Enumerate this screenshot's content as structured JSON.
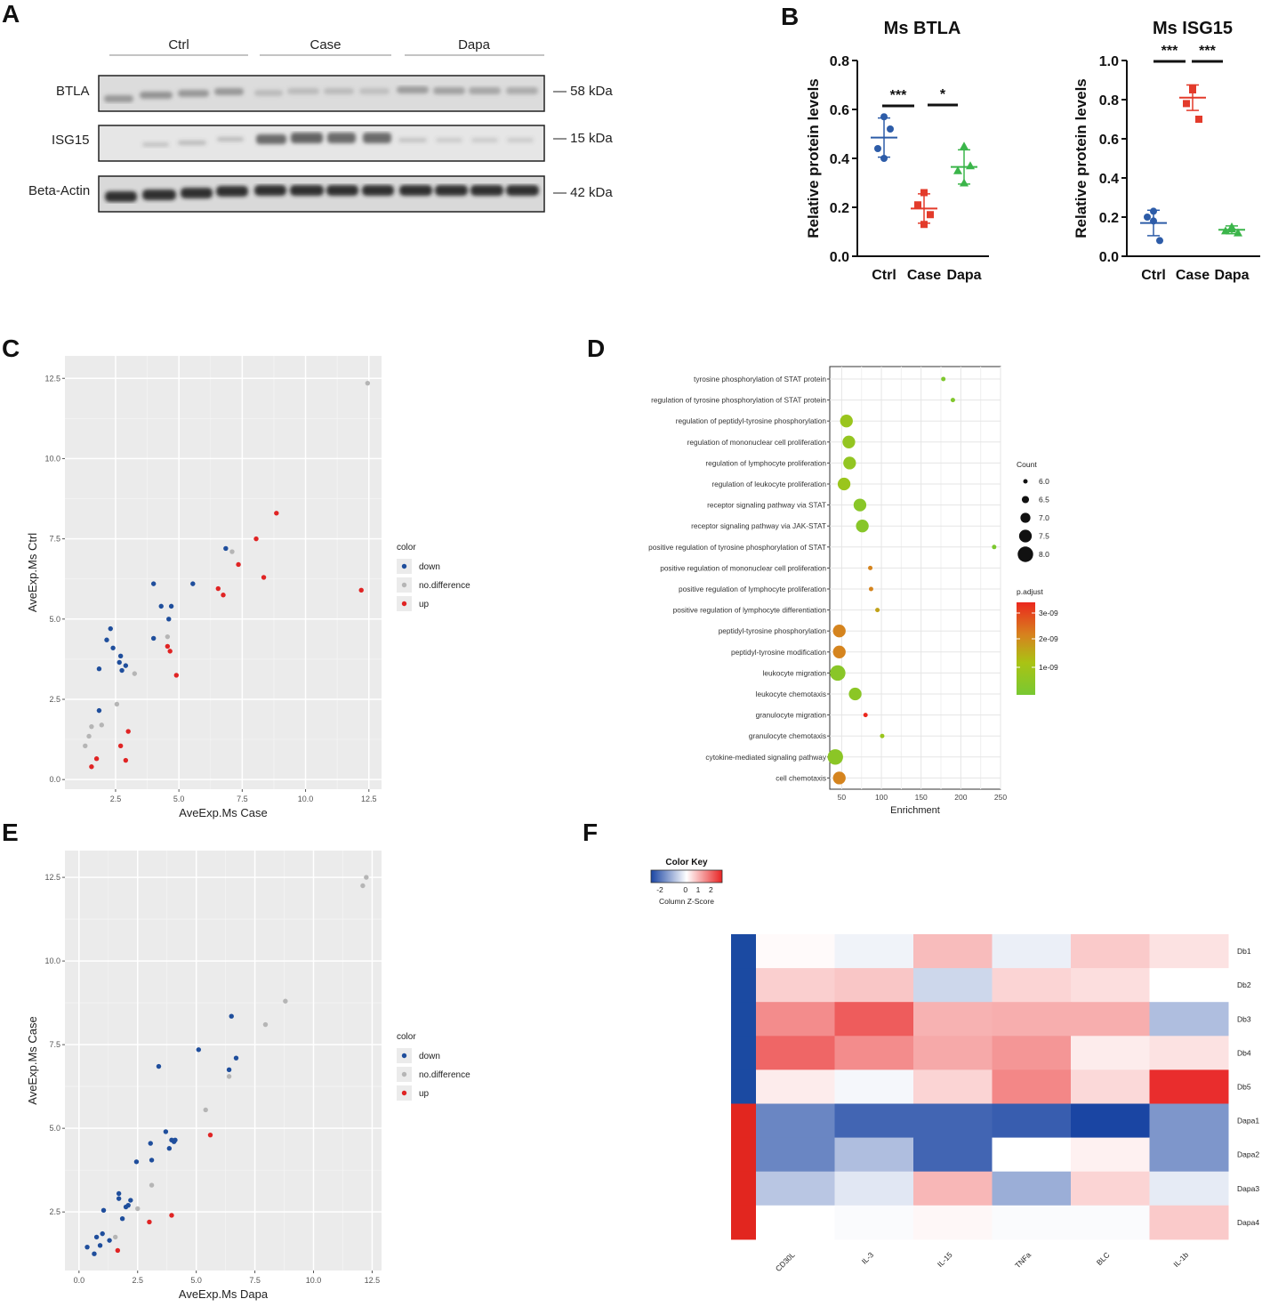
{
  "colors": {
    "down": "#1f4e9c",
    "nodiff": "#b5b5b5",
    "up": "#e02424",
    "ctrl": "#2d5ca8",
    "case": "#e33b2b",
    "dapa": "#3bb54a",
    "panel_bg": "#ebebeb"
  },
  "panel_letters": {
    "A": "A",
    "B": "B",
    "C": "C",
    "D": "D",
    "E": "E",
    "F": "F"
  },
  "blot": {
    "groups": [
      "Ctrl",
      "Case",
      "Dapa"
    ],
    "rows": [
      {
        "label": "BTLA",
        "size": "— 58 kDa"
      },
      {
        "label": "ISG15",
        "size": "— 15 kDa"
      },
      {
        "label": "Beta-Actin",
        "size": "— 42 kDa"
      }
    ]
  },
  "chart_data": [
    {
      "id": "btla",
      "type": "scatter",
      "title": "Ms BTLA",
      "ylabel": "Relative protein levels",
      "categories": [
        "Ctrl",
        "Case",
        "Dapa"
      ],
      "ylim": [
        0,
        0.8
      ],
      "yticks": [
        "0.0",
        "0.2",
        "0.4",
        "0.6",
        "0.8"
      ],
      "points": [
        [
          0.57,
          0.44,
          0.4,
          0.52
        ],
        [
          0.26,
          0.21,
          0.13,
          0.17
        ],
        [
          0.45,
          0.35,
          0.3,
          0.37
        ]
      ],
      "mean": [
        0.485,
        0.195,
        0.365
      ],
      "sd": [
        0.08,
        0.06,
        0.07
      ],
      "sig": [
        "***",
        "*"
      ]
    },
    {
      "id": "isg15",
      "type": "scatter",
      "title": "Ms ISG15",
      "ylabel": "Relative protein levels",
      "categories": [
        "Ctrl",
        "Case",
        "Dapa"
      ],
      "ylim": [
        0,
        1.0
      ],
      "yticks": [
        "0.0",
        "0.2",
        "0.4",
        "0.6",
        "0.8",
        "1.0"
      ],
      "points": [
        [
          0.23,
          0.2,
          0.18,
          0.08
        ],
        [
          0.86,
          0.78,
          0.85,
          0.7
        ],
        [
          0.15,
          0.13,
          0.14,
          0.12
        ]
      ],
      "mean": [
        0.17,
        0.81,
        0.135
      ],
      "sd": [
        0.065,
        0.065,
        0.02
      ],
      "sig": [
        "***",
        "***"
      ]
    },
    {
      "id": "scatterC",
      "type": "scatter",
      "xlabel": "AveExp.Ms Case",
      "ylabel": "AveExp.Ms Ctrl",
      "xlim": [
        0.5,
        13
      ],
      "ylim": [
        -0.3,
        13.2
      ],
      "xticks": [
        2.5,
        5.0,
        7.5,
        10.0,
        12.5
      ],
      "yticks": [
        0.0,
        2.5,
        5.0,
        7.5,
        10.0,
        12.5
      ],
      "legend_title": "color",
      "legend": [
        "down",
        "no.difference",
        "up"
      ],
      "points": [
        [
          1.85,
          3.45,
          "down"
        ],
        [
          2.15,
          4.35,
          "down"
        ],
        [
          2.3,
          4.7,
          "down"
        ],
        [
          2.4,
          4.1,
          "down"
        ],
        [
          2.65,
          3.65,
          "down"
        ],
        [
          2.7,
          3.85,
          "down"
        ],
        [
          2.75,
          3.4,
          "down"
        ],
        [
          2.9,
          3.55,
          "down"
        ],
        [
          1.85,
          2.15,
          "down"
        ],
        [
          4.0,
          6.1,
          "down"
        ],
        [
          4.0,
          4.4,
          "down"
        ],
        [
          4.3,
          5.4,
          "down"
        ],
        [
          4.6,
          5.0,
          "down"
        ],
        [
          4.7,
          5.4,
          "down"
        ],
        [
          5.55,
          6.1,
          "down"
        ],
        [
          6.85,
          7.2,
          "down"
        ],
        [
          12.45,
          12.35,
          "nodiff"
        ],
        [
          7.1,
          7.1,
          "nodiff"
        ],
        [
          1.3,
          1.05,
          "nodiff"
        ],
        [
          1.45,
          1.35,
          "nodiff"
        ],
        [
          1.55,
          1.65,
          "nodiff"
        ],
        [
          1.95,
          1.7,
          "nodiff"
        ],
        [
          2.55,
          2.35,
          "nodiff"
        ],
        [
          3.25,
          3.3,
          "nodiff"
        ],
        [
          4.55,
          4.45,
          "nodiff"
        ],
        [
          8.85,
          8.3,
          "up"
        ],
        [
          8.05,
          7.5,
          "up"
        ],
        [
          7.35,
          6.7,
          "up"
        ],
        [
          8.35,
          6.3,
          "up"
        ],
        [
          6.55,
          5.95,
          "up"
        ],
        [
          6.75,
          5.75,
          "up"
        ],
        [
          12.2,
          5.9,
          "up"
        ],
        [
          4.55,
          4.15,
          "up"
        ],
        [
          4.65,
          4.0,
          "up"
        ],
        [
          4.9,
          3.25,
          "up"
        ],
        [
          3.0,
          1.5,
          "up"
        ],
        [
          1.75,
          0.65,
          "up"
        ],
        [
          1.55,
          0.4,
          "up"
        ],
        [
          2.7,
          1.05,
          "up"
        ],
        [
          2.9,
          0.6,
          "up"
        ]
      ]
    },
    {
      "id": "dotD",
      "type": "scatter",
      "xlabel": "Enrichment",
      "xlim": [
        35,
        250
      ],
      "xticks": [
        50,
        100,
        150,
        200,
        250
      ],
      "size_title": "Count",
      "size_levels": [
        "6.0",
        "6.5",
        "7.0",
        "7.5",
        "8.0"
      ],
      "color_title": "p.adjust",
      "color_ticks": [
        "3e-09",
        "2e-09",
        "1e-09"
      ],
      "terms": [
        {
          "name": "tyrosine phosphorylation of STAT protein",
          "x": 178,
          "count": 6.0,
          "p": 5.5e-10
        },
        {
          "name": "regulation of tyrosine phosphorylation of STAT protein",
          "x": 190,
          "count": 6.0,
          "p": 6e-10
        },
        {
          "name": "regulation of peptidyl-tyrosine phosphorylation",
          "x": 56,
          "count": 7.5,
          "p": 1.2e-09
        },
        {
          "name": "regulation of mononuclear cell proliferation",
          "x": 59,
          "count": 7.5,
          "p": 1.05e-09
        },
        {
          "name": "regulation of lymphocyte proliferation",
          "x": 60,
          "count": 7.5,
          "p": 1e-09
        },
        {
          "name": "regulation of leukocyte proliferation",
          "x": 53,
          "count": 7.5,
          "p": 1.2e-09
        },
        {
          "name": "receptor signaling pathway via STAT",
          "x": 73,
          "count": 7.5,
          "p": 8e-10
        },
        {
          "name": "receptor signaling pathway via JAK-STAT",
          "x": 76,
          "count": 7.5,
          "p": 7.5e-10
        },
        {
          "name": "positive regulation of tyrosine phosphorylation of STAT",
          "x": 242,
          "count": 6.0,
          "p": 5e-10
        },
        {
          "name": "positive regulation of mononuclear cell proliferation",
          "x": 86,
          "count": 6.0,
          "p": 2.4e-09
        },
        {
          "name": "positive regulation of lymphocyte proliferation",
          "x": 87,
          "count": 6.0,
          "p": 2.4e-09
        },
        {
          "name": "positive regulation of lymphocyte differentiation",
          "x": 95,
          "count": 6.0,
          "p": 2e-09
        },
        {
          "name": "peptidyl-tyrosine phosphorylation",
          "x": 47,
          "count": 7.5,
          "p": 2.4e-09
        },
        {
          "name": "peptidyl-tyrosine modification",
          "x": 47,
          "count": 7.5,
          "p": 2.4e-09
        },
        {
          "name": "leukocyte migration",
          "x": 45,
          "count": 8.0,
          "p": 8e-10
        },
        {
          "name": "leukocyte chemotaxis",
          "x": 67,
          "count": 7.5,
          "p": 8.5e-10
        },
        {
          "name": "granulocyte migration",
          "x": 80,
          "count": 6.0,
          "p": 3.3e-09
        },
        {
          "name": "granulocyte chemotaxis",
          "x": 101,
          "count": 6.0,
          "p": 1.2e-09
        },
        {
          "name": "cytokine-mediated signaling pathway",
          "x": 42,
          "count": 8.0,
          "p": 8.5e-10
        },
        {
          "name": "cell chemotaxis",
          "x": 47,
          "count": 7.5,
          "p": 2.4e-09
        }
      ]
    },
    {
      "id": "scatterE",
      "type": "scatter",
      "xlabel": "AveExp.Ms Dapa",
      "ylabel": "AveExp.Ms Case",
      "xlim": [
        -0.6,
        12.9
      ],
      "ylim": [
        0.75,
        13.3
      ],
      "xticks": [
        0.0,
        2.5,
        5.0,
        7.5,
        10.0,
        12.5
      ],
      "yticks": [
        2.5,
        5.0,
        7.5,
        10.0,
        12.5
      ],
      "legend_title": "color",
      "legend": [
        "down",
        "no.difference",
        "up"
      ],
      "points": [
        [
          0.35,
          1.45,
          "down"
        ],
        [
          0.65,
          1.25,
          "down"
        ],
        [
          0.75,
          1.75,
          "down"
        ],
        [
          0.9,
          1.5,
          "down"
        ],
        [
          1.0,
          1.85,
          "down"
        ],
        [
          1.05,
          2.55,
          "down"
        ],
        [
          1.3,
          1.65,
          "down"
        ],
        [
          1.7,
          2.9,
          "down"
        ],
        [
          1.7,
          3.05,
          "down"
        ],
        [
          1.85,
          2.3,
          "down"
        ],
        [
          2.0,
          2.65,
          "down"
        ],
        [
          2.1,
          2.7,
          "down"
        ],
        [
          2.2,
          2.85,
          "down"
        ],
        [
          2.45,
          4.0,
          "down"
        ],
        [
          3.05,
          4.55,
          "down"
        ],
        [
          3.1,
          4.05,
          "down"
        ],
        [
          3.4,
          6.85,
          "down"
        ],
        [
          3.7,
          4.9,
          "down"
        ],
        [
          3.85,
          4.4,
          "down"
        ],
        [
          3.95,
          4.65,
          "down"
        ],
        [
          4.05,
          4.6,
          "down"
        ],
        [
          4.1,
          4.65,
          "down"
        ],
        [
          5.1,
          7.35,
          "down"
        ],
        [
          6.4,
          6.75,
          "down"
        ],
        [
          6.5,
          8.35,
          "down"
        ],
        [
          6.7,
          7.1,
          "down"
        ],
        [
          12.25,
          12.5,
          "nodiff"
        ],
        [
          12.1,
          12.25,
          "nodiff"
        ],
        [
          8.8,
          8.8,
          "nodiff"
        ],
        [
          7.95,
          8.1,
          "nodiff"
        ],
        [
          6.4,
          6.55,
          "nodiff"
        ],
        [
          5.4,
          5.55,
          "nodiff"
        ],
        [
          3.1,
          3.3,
          "nodiff"
        ],
        [
          2.5,
          2.6,
          "nodiff"
        ],
        [
          1.55,
          1.75,
          "nodiff"
        ],
        [
          5.6,
          4.8,
          "up"
        ],
        [
          3.95,
          2.4,
          "up"
        ],
        [
          3.0,
          2.2,
          "up"
        ],
        [
          1.65,
          1.35,
          "up"
        ]
      ]
    },
    {
      "id": "heatF",
      "type": "heatmap",
      "color_key_title": "Color Key",
      "color_key_ticks": [
        "-2",
        "0",
        "1",
        "2"
      ],
      "color_key_label": "Column Z-Score",
      "columns": [
        "CD30L",
        "IL-3",
        "IL-15",
        "TNFa",
        "BLC",
        "IL-1b"
      ],
      "rows": [
        "Db1",
        "Db2",
        "Db3",
        "Db4",
        "Db5",
        "Dapa1",
        "Dapa2",
        "Dapa3",
        "Dapa4"
      ],
      "row_groups": [
        "db",
        "db",
        "db",
        "db",
        "db",
        "dapa",
        "dapa",
        "dapa",
        "dapa"
      ],
      "values": [
        [
          0.05,
          -0.15,
          0.7,
          -0.2,
          0.55,
          0.3
        ],
        [
          0.5,
          0.6,
          -0.5,
          0.45,
          0.35,
          0.0
        ],
        [
          1.2,
          1.7,
          0.8,
          0.85,
          0.85,
          -0.8
        ],
        [
          1.6,
          1.2,
          0.9,
          1.1,
          0.2,
          0.3
        ],
        [
          0.2,
          -0.1,
          0.45,
          1.25,
          0.4,
          2.2
        ],
        [
          -1.5,
          -1.9,
          -1.9,
          -2.0,
          -2.3,
          -1.3
        ],
        [
          -1.5,
          -0.8,
          -1.9,
          0.0,
          0.15,
          -1.3
        ],
        [
          -0.7,
          -0.3,
          0.75,
          -1.0,
          0.45,
          -0.25
        ],
        [
          0.0,
          -0.05,
          0.08,
          -0.05,
          -0.05,
          0.55
        ]
      ]
    }
  ]
}
